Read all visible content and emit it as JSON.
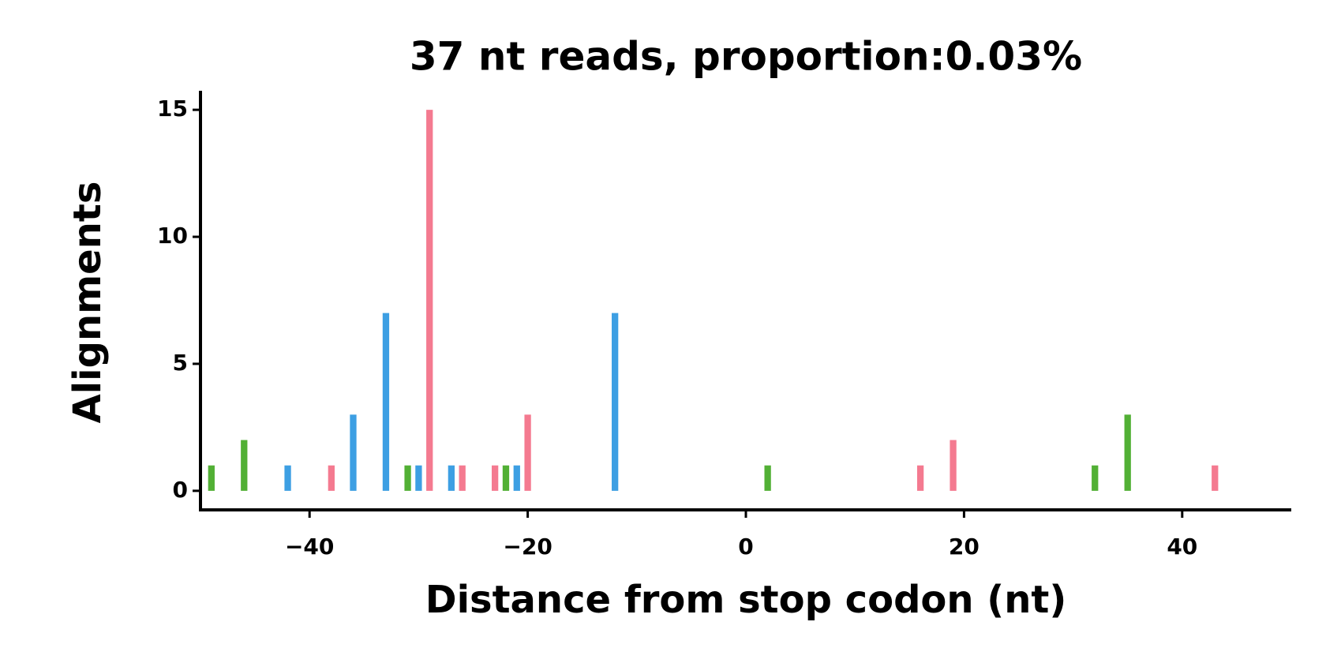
{
  "chart_data": {
    "type": "bar",
    "title": "37 nt reads, proportion:0.03%",
    "x_label": "Distance from stop codon (nt)",
    "y_label": "Alignments",
    "series": [
      {
        "color": "#f47a90",
        "x": [
          -38,
          -29,
          -26,
          -23,
          -20,
          16,
          19,
          43
        ],
        "values": [
          1,
          15,
          1,
          1,
          3,
          1,
          2,
          1
        ]
      },
      {
        "color": "#3d9fe3",
        "x": [
          -42,
          -36,
          -33,
          -30,
          -27,
          -21,
          -12
        ],
        "values": [
          1,
          3,
          7,
          1,
          1,
          1,
          7
        ]
      },
      {
        "color": "#52b035",
        "x": [
          -49,
          -46,
          -31,
          -22,
          2,
          32,
          35
        ],
        "values": [
          1,
          2,
          1,
          1,
          1,
          1,
          3
        ]
      }
    ],
    "xlim": [
      -50,
      50
    ],
    "ylim": [
      -0.75,
      15.75
    ],
    "xticks": [
      {
        "value": -40,
        "label": "−40"
      },
      {
        "value": -20,
        "label": "−20"
      },
      0,
      20,
      40
    ],
    "yticks": [
      0,
      5,
      10,
      15
    ]
  }
}
